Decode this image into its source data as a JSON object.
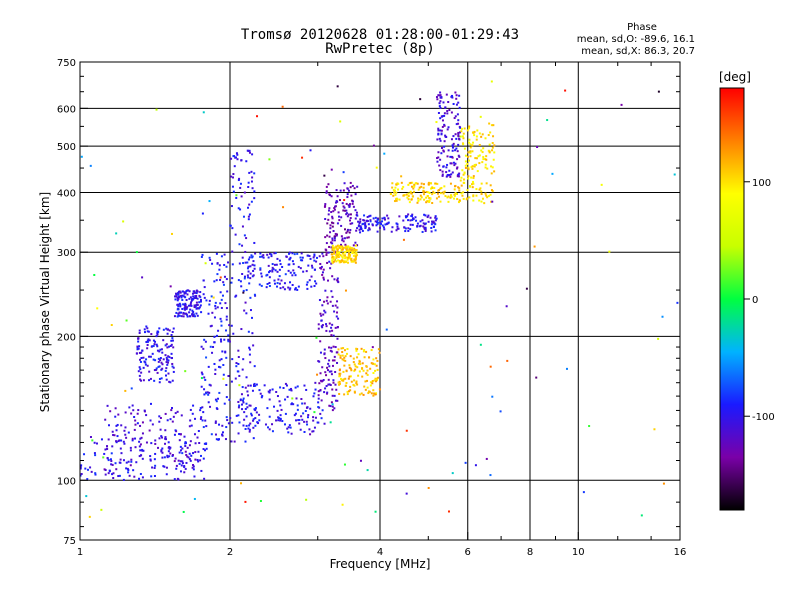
{
  "chart_data": {
    "type": "scatter",
    "title": "Tromsø 20120628 01:28:00-01:29:43",
    "subtitle": "RwPretec (8p)",
    "xlabel": "Frequency [MHz]",
    "ylabel": "Stationary phase Virtual Height [km]",
    "x_scale": "log2",
    "y_scale": "log",
    "xlim": [
      1,
      16
    ],
    "ylim": [
      75,
      750
    ],
    "x_ticks": [
      1,
      2,
      4,
      6,
      8,
      10,
      16
    ],
    "y_ticks": [
      75,
      100,
      200,
      300,
      400,
      500,
      600,
      750
    ],
    "grid": true,
    "phase_info": {
      "title": "Phase",
      "line_o": "mean, sd,O: -89.6, 16.1",
      "line_x": "mean, sd,X:  86.3, 20.7"
    },
    "colorbar": {
      "label": "[deg]",
      "range": [
        -180,
        180
      ],
      "ticks": [
        100,
        0,
        -100
      ],
      "colors": [
        "#000000",
        "#7a00a8",
        "#1a1aff",
        "#00b3ff",
        "#00ff40",
        "#c8ff00",
        "#ffff00",
        "#ff8000",
        "#ff0000"
      ]
    },
    "clusters": [
      {
        "freq": [
          1.0,
          1.8
        ],
        "height": [
          100,
          125
        ],
        "phase": -100
      },
      {
        "freq": [
          1.12,
          1.75
        ],
        "height": [
          105,
          145
        ],
        "phase": -110
      },
      {
        "freq": [
          1.3,
          1.55
        ],
        "height": [
          160,
          210
        ],
        "phase": -100
      },
      {
        "freq": [
          1.55,
          1.75
        ],
        "height": [
          220,
          250
        ],
        "phase": -100
      },
      {
        "freq": [
          1.75,
          2.0
        ],
        "height": [
          120,
          300
        ],
        "phase": -95
      },
      {
        "freq": [
          2.0,
          2.25
        ],
        "height": [
          120,
          500
        ],
        "phase": -100
      },
      {
        "freq": [
          2.1,
          3.0
        ],
        "height": [
          250,
          300
        ],
        "phase": -95
      },
      {
        "freq": [
          2.1,
          3.1
        ],
        "height": [
          125,
          160
        ],
        "phase": -100
      },
      {
        "freq": [
          3.0,
          3.3
        ],
        "height": [
          140,
          300
        ],
        "phase": -120
      },
      {
        "freq": [
          3.1,
          3.6
        ],
        "height": [
          300,
          420
        ],
        "phase": -125
      },
      {
        "freq": [
          3.2,
          3.6
        ],
        "height": [
          285,
          310
        ],
        "phase": 105
      },
      {
        "freq": [
          3.3,
          4.0
        ],
        "height": [
          150,
          190
        ],
        "phase": 110
      },
      {
        "freq": [
          3.6,
          5.2
        ],
        "height": [
          330,
          360
        ],
        "phase": -100
      },
      {
        "freq": [
          4.2,
          5.8
        ],
        "height": [
          380,
          420
        ],
        "phase": 105
      },
      {
        "freq": [
          5.2,
          5.8
        ],
        "height": [
          430,
          650
        ],
        "phase": -110
      },
      {
        "freq": [
          5.8,
          6.8
        ],
        "height": [
          380,
          560
        ],
        "phase": 100
      }
    ]
  }
}
